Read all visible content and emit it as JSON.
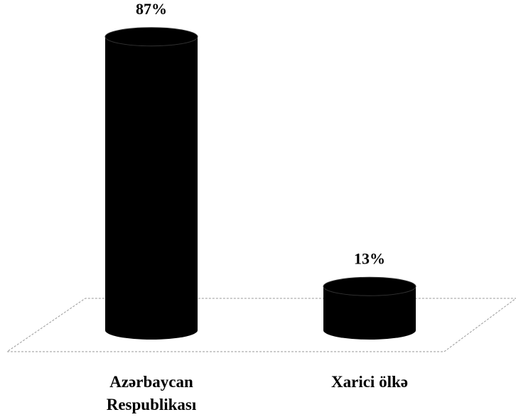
{
  "chart_data": {
    "type": "cylinder-bar",
    "categories": [
      "Azərbaycan Respublikası",
      "Xarici ölkə"
    ],
    "values": [
      87,
      13
    ],
    "value_labels": [
      "87%",
      "13%"
    ],
    "color": "#000000"
  }
}
